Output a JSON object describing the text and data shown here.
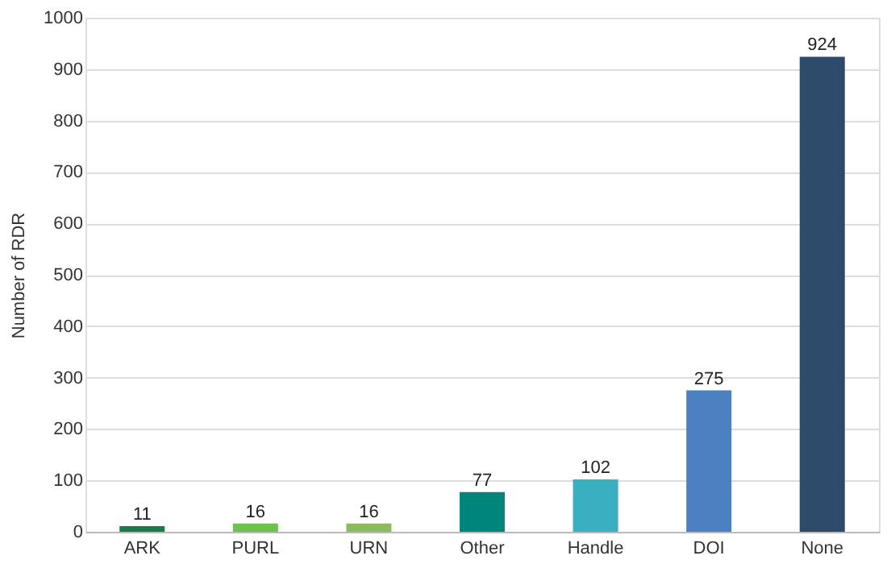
{
  "chart_data": {
    "type": "bar",
    "ylabel": "Number of RDR",
    "categories": [
      "ARK",
      "PURL",
      "URN",
      "Other",
      "Handle",
      "DOI",
      "None"
    ],
    "values": [
      11,
      16,
      16,
      77,
      102,
      275,
      924
    ],
    "colors": [
      "#1b7a47",
      "#6cc24a",
      "#8cba5c",
      "#00857a",
      "#3bafc2",
      "#4b80c1",
      "#2d4a6b"
    ],
    "ylim": [
      0,
      1000
    ],
    "yticks": [
      0,
      100,
      200,
      300,
      400,
      500,
      600,
      700,
      800,
      900,
      1000
    ],
    "grid": "y",
    "data_labels": true
  }
}
